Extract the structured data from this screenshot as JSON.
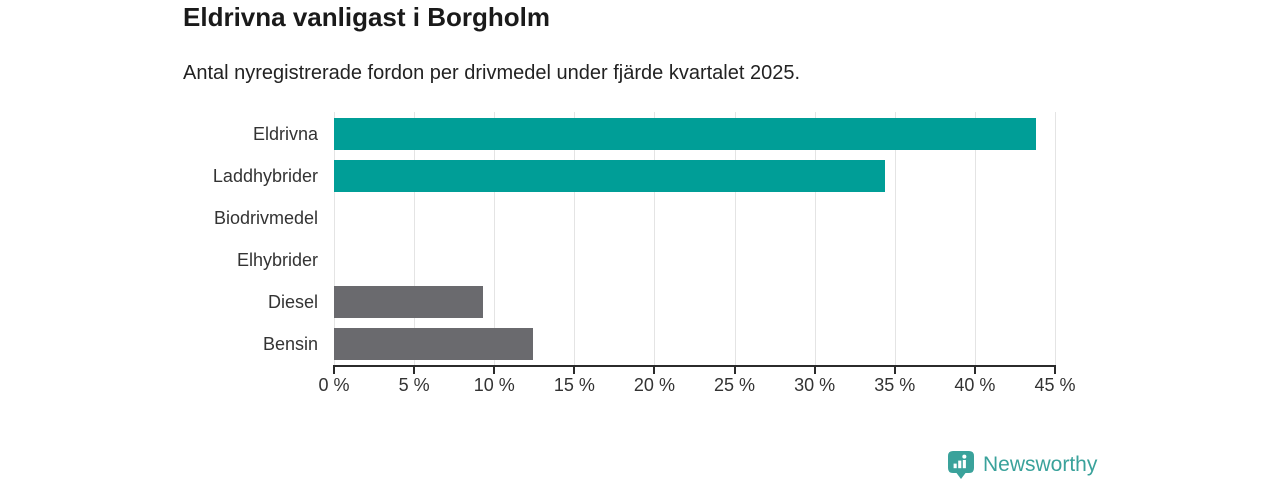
{
  "title": "Eldrivna vanligast i Borgholm",
  "subtitle": "Antal nyregistrerade fordon per drivmedel under fjärde kvartalet 2025.",
  "chart_data": {
    "type": "bar",
    "orientation": "horizontal",
    "title": "Eldrivna vanligast i Borgholm",
    "subtitle": "Antal nyregistrerade fordon per drivmedel under fjärde kvartalet 2025.",
    "categories": [
      "Eldrivna",
      "Laddhybrider",
      "Biodrivmedel",
      "Elhybrider",
      "Diesel",
      "Bensin"
    ],
    "values": [
      43.8,
      34.4,
      0,
      0,
      9.3,
      12.4
    ],
    "unit": "%",
    "bar_colors": [
      "#009E97",
      "#009E97",
      "#6A6A6E",
      "#6A6A6E",
      "#6A6A6E",
      "#6A6A6E"
    ],
    "xlim": [
      0,
      45
    ],
    "x_tick_values": [
      0,
      5,
      10,
      15,
      20,
      25,
      30,
      35,
      40,
      45
    ],
    "x_tick_labels": [
      "0 %",
      "5 %",
      "10 %",
      "15 %",
      "20 %",
      "25 %",
      "30 %",
      "35 %",
      "40 %",
      "45 %"
    ],
    "grid": true,
    "legend": "none"
  },
  "colors": {
    "teal_bar": "#009E97",
    "gray_bar": "#6A6A6E",
    "gridline": "#E4E4E4",
    "axis": "#2B2B2B",
    "tick_text": "#333333",
    "title_text": "#1A1A1A",
    "subtitle_text": "#222222",
    "logo_teal": "#3AA29B"
  },
  "branding": {
    "logo_text": "Newsworthy"
  }
}
